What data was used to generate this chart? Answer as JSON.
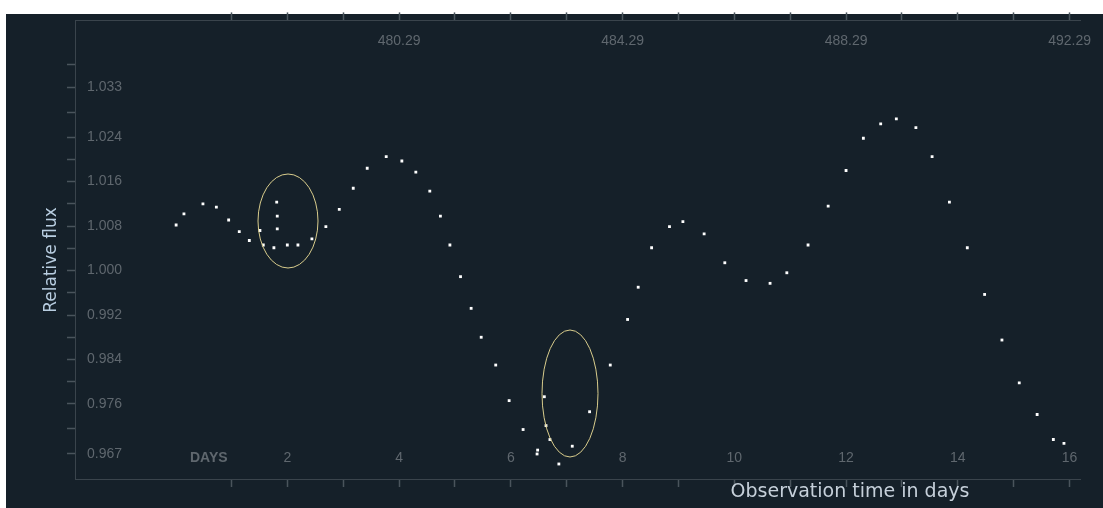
{
  "chart_data": {
    "type": "scatter",
    "xlabel": "Observation time in days",
    "ylabel": "Relative flux",
    "annotations": [
      "DAYS"
    ],
    "marker": "square",
    "grid": false,
    "legend": false,
    "xlim": [
      -1.8,
      16.2
    ],
    "xticks": [
      {
        "value": 1,
        "label": null
      },
      2,
      {
        "value": 3,
        "label": null
      },
      4,
      {
        "value": 5,
        "label": null
      },
      6,
      {
        "value": 7,
        "label": null
      },
      8,
      {
        "value": 9,
        "label": null
      },
      10,
      {
        "value": 11,
        "label": null
      },
      12,
      {
        "value": 13,
        "label": null
      },
      14,
      {
        "value": 15,
        "label": null
      },
      16
    ],
    "x2lim": [
      474.49,
      492.49
    ],
    "x2ticks": [
      {
        "value": 477.29,
        "label": null
      },
      {
        "value": 478.29,
        "label": null
      },
      {
        "value": 479.29,
        "label": null
      },
      480.29,
      {
        "value": 481.29,
        "label": null
      },
      {
        "value": 482.29,
        "label": null
      },
      {
        "value": 483.29,
        "label": null
      },
      484.29,
      {
        "value": 485.29,
        "label": null
      },
      {
        "value": 486.29,
        "label": null
      },
      {
        "value": 487.29,
        "label": null
      },
      488.29,
      {
        "value": 489.29,
        "label": null
      },
      {
        "value": 490.29,
        "label": null
      },
      {
        "value": 491.29,
        "label": null
      },
      492.29
    ],
    "ylim": [
      0.9625,
      1.045
    ],
    "yticks": [
      0.967,
      {
        "value": 0.9715,
        "label": null
      },
      0.976,
      {
        "value": 0.98,
        "label": null
      },
      0.984,
      {
        "value": 0.988,
        "label": null
      },
      0.992,
      {
        "value": 0.996,
        "label": null
      },
      {
        "value": 1.0,
        "label": "1.000"
      },
      {
        "value": 1.004,
        "label": null
      },
      1.008,
      {
        "value": 1.012,
        "label": null
      },
      1.016,
      {
        "value": 1.02,
        "label": null
      },
      1.024,
      {
        "value": 1.0285,
        "label": null
      },
      1.033,
      {
        "value": 1.037,
        "label": null
      }
    ],
    "series": [
      {
        "color": "#ffffff",
        "x": [
          0.01,
          0.15,
          0.49,
          0.73,
          0.95,
          1.14,
          1.32,
          1.51,
          1.57,
          1.76,
          1.81,
          1.82,
          1.82,
          2.0,
          2.19,
          2.44,
          2.69,
          2.93,
          3.18,
          3.43,
          3.77,
          4.05,
          4.3,
          4.55,
          4.74,
          4.91,
          5.1,
          5.29,
          5.47,
          5.73,
          5.97,
          6.22,
          6.47,
          6.48,
          6.6,
          6.63,
          6.7,
          6.86,
          7.1,
          7.41,
          7.78,
          8.09,
          8.28,
          8.52,
          8.84,
          9.08,
          9.46,
          9.83,
          10.21,
          10.64,
          10.94,
          11.32,
          11.68,
          12.0,
          12.31,
          12.62,
          12.9,
          13.25,
          13.54,
          13.85,
          14.17,
          14.48,
          14.79,
          15.1,
          15.42,
          15.71,
          15.9
        ],
        "values": [
          1.0082,
          1.0102,
          1.012,
          1.0114,
          1.0091,
          1.007,
          1.0054,
          1.0072,
          1.0046,
          1.0041,
          1.0123,
          1.0098,
          1.0075,
          1.0046,
          1.0046,
          1.0057,
          1.0079,
          1.011,
          1.0148,
          1.0184,
          1.0205,
          1.0197,
          1.0177,
          1.0143,
          1.0098,
          1.0046,
          0.9989,
          0.9932,
          0.988,
          0.983,
          0.9766,
          0.9714,
          0.967,
          0.9677,
          0.9773,
          0.9721,
          0.9696,
          0.9652,
          0.9684,
          0.9746,
          0.983,
          0.9912,
          0.997,
          1.0041,
          1.0079,
          1.0088,
          1.0066,
          1.0014,
          0.9982,
          0.9977,
          0.9996,
          1.0046,
          1.0116,
          1.018,
          1.0238,
          1.0264,
          1.0273,
          1.0257,
          1.0205,
          1.0123,
          1.0041,
          0.9957,
          0.9875,
          0.9798,
          0.9741,
          0.9696,
          0.9689
        ]
      }
    ]
  }
}
